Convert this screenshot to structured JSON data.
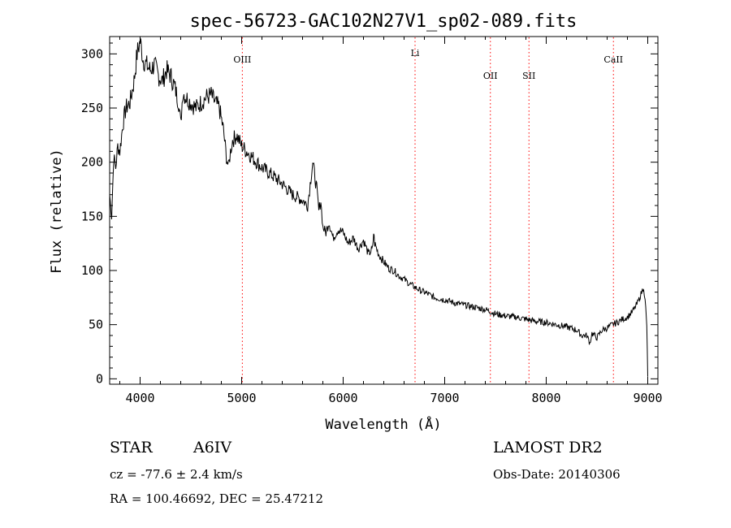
{
  "chart_data": {
    "type": "line",
    "title": "spec-56723-GAC102N27V1_sp02-089.fits",
    "xlabel": "Wavelength (Å)",
    "ylabel": "Flux (relative)",
    "xlim": [
      3700,
      9100
    ],
    "ylim": [
      -5,
      316
    ],
    "xticks": [
      4000,
      5000,
      6000,
      7000,
      8000,
      9000
    ],
    "yticks": [
      0,
      50,
      100,
      150,
      200,
      250,
      300
    ],
    "grid": false,
    "line_color": "#000000",
    "marker_color": "#ff0000",
    "lines": [
      {
        "label": "OIII",
        "x": 5007,
        "label_y": 292
      },
      {
        "label": "Li",
        "x": 6708,
        "label_y": 298
      },
      {
        "label": "OII",
        "x": 7450,
        "label_y": 277
      },
      {
        "label": "SII",
        "x": 7830,
        "label_y": 277
      },
      {
        "label": "CaII",
        "x": 8662,
        "label_y": 292
      }
    ],
    "series": [
      {
        "x": [
          3700,
          3720,
          3740,
          3760,
          3780,
          3800,
          3830,
          3860,
          3900,
          3940,
          3970,
          4000,
          4030,
          4060,
          4100,
          4140,
          4180,
          4220,
          4260,
          4300,
          4340,
          4380,
          4400,
          4420,
          4450,
          4500,
          4550,
          4600,
          4650,
          4700,
          4740,
          4780,
          4820,
          4850,
          4870,
          4890,
          4910,
          4950,
          5000,
          5050,
          5100,
          5150,
          5200,
          5300,
          5400,
          5500,
          5600,
          5650,
          5700,
          5740,
          5760,
          5780,
          5800,
          5830,
          5860,
          5900,
          5950,
          6000,
          6050,
          6100,
          6150,
          6200,
          6250,
          6290,
          6300,
          6310,
          6350,
          6400,
          6450,
          6500,
          6550,
          6600,
          6650,
          6700,
          6750,
          6800,
          6900,
          7000,
          7100,
          7200,
          7300,
          7400,
          7500,
          7600,
          7700,
          7800,
          7900,
          8000,
          8100,
          8200,
          8300,
          8350,
          8400,
          8430,
          8450,
          8500,
          8550,
          8600,
          8650,
          8700,
          8750,
          8800,
          8850,
          8900,
          8920,
          8940,
          8960,
          8980,
          8990,
          9000
        ],
        "y": [
          170,
          150,
          205,
          195,
          215,
          210,
          235,
          250,
          255,
          275,
          300,
          312,
          295,
          290,
          285,
          290,
          280,
          275,
          285,
          280,
          270,
          255,
          235,
          265,
          260,
          255,
          250,
          255,
          260,
          262,
          255,
          250,
          230,
          205,
          195,
          210,
          220,
          225,
          215,
          210,
          205,
          200,
          195,
          188,
          180,
          170,
          165,
          160,
          200,
          175,
          155,
          165,
          140,
          135,
          145,
          130,
          138,
          135,
          125,
          130,
          120,
          128,
          115,
          120,
          135,
          125,
          115,
          108,
          102,
          100,
          95,
          92,
          88,
          85,
          82,
          80,
          75,
          73,
          70,
          68,
          66,
          64,
          60,
          58,
          57,
          55,
          53,
          52,
          50,
          48,
          45,
          40,
          40,
          33,
          42,
          38,
          45,
          47,
          50,
          52,
          55,
          57,
          62,
          70,
          75,
          80,
          85,
          65,
          50,
          2
        ]
      }
    ]
  },
  "info": {
    "object_class": "STAR",
    "subclass": "A6IV",
    "survey": "LAMOST DR2",
    "velocity": "cz = -77.6 ± 2.4 km/s",
    "obs_date": "Obs-Date: 20140306",
    "coords": "RA = 100.46692, DEC =  25.47212"
  }
}
